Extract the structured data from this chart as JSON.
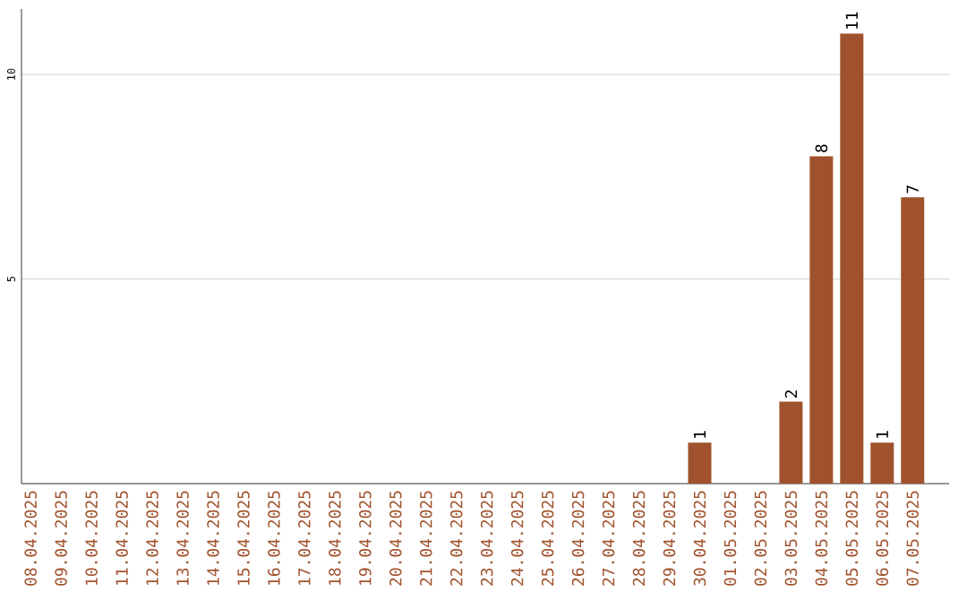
{
  "chart_data": {
    "type": "bar",
    "categories": [
      "08.04.2025",
      "09.04.2025",
      "10.04.2025",
      "11.04.2025",
      "12.04.2025",
      "13.04.2025",
      "14.04.2025",
      "15.04.2025",
      "16.04.2025",
      "17.04.2025",
      "18.04.2025",
      "19.04.2025",
      "20.04.2025",
      "21.04.2025",
      "22.04.2025",
      "23.04.2025",
      "24.04.2025",
      "25.04.2025",
      "26.04.2025",
      "27.04.2025",
      "28.04.2025",
      "29.04.2025",
      "30.04.2025",
      "01.05.2025",
      "02.05.2025",
      "03.05.2025",
      "04.05.2025",
      "05.05.2025",
      "06.05.2025",
      "07.05.2025"
    ],
    "values": [
      0,
      0,
      0,
      0,
      0,
      0,
      0,
      0,
      0,
      0,
      0,
      0,
      0,
      0,
      0,
      0,
      0,
      0,
      0,
      0,
      0,
      0,
      1,
      0,
      0,
      2,
      8,
      11,
      1,
      7
    ],
    "value_labels": [
      null,
      null,
      null,
      null,
      null,
      null,
      null,
      null,
      null,
      null,
      null,
      null,
      null,
      null,
      null,
      null,
      null,
      null,
      null,
      null,
      null,
      null,
      "1",
      null,
      null,
      "2",
      "8",
      "11",
      "1",
      "7"
    ],
    "color": "#a0522d",
    "ylim": [
      0,
      11.6
    ],
    "yticks": [
      5,
      10
    ],
    "grid": "y"
  }
}
